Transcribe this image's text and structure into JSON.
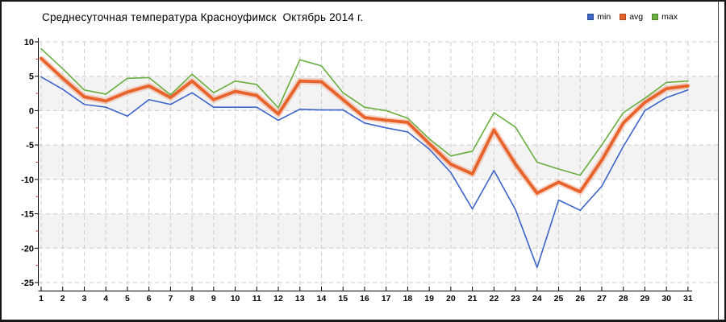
{
  "title": "Среднесуточная температура Красноуфимск  Октябрь 2014 г.",
  "legend": {
    "position": "top-right",
    "items": [
      {
        "name": "min",
        "label": "min",
        "color": "#3c64c9"
      },
      {
        "name": "avg",
        "label": "avg",
        "color": "#e8622c"
      },
      {
        "name": "max",
        "label": "max",
        "color": "#68ae3e"
      }
    ]
  },
  "chart_data": {
    "type": "line",
    "title": "Среднесуточная температура Красноуфимск  Октябрь 2014 г.",
    "xlabel": "",
    "ylabel": "",
    "x": [
      1,
      2,
      3,
      4,
      5,
      6,
      7,
      8,
      9,
      10,
      11,
      12,
      13,
      14,
      15,
      16,
      17,
      18,
      19,
      20,
      21,
      22,
      23,
      24,
      25,
      26,
      27,
      28,
      29,
      30,
      31
    ],
    "xtick_labels": [
      "1",
      "2",
      "3",
      "4",
      "5",
      "6",
      "7",
      "8",
      "9",
      "10",
      "11",
      "12",
      "13",
      "14",
      "15",
      "16",
      "17",
      "18",
      "19",
      "20",
      "21",
      "22",
      "23",
      "24",
      "25",
      "26",
      "27",
      "28",
      "29",
      "30",
      "31"
    ],
    "ylim": [
      -25,
      10
    ],
    "ytick_step": 5,
    "yminor_step": 2.5,
    "ytick_labels": [
      "10",
      "5",
      "0",
      "-5",
      "-10",
      "-15",
      "-20",
      "-25"
    ],
    "grid": "dashed",
    "grid_color": "#cccccc",
    "band_color": "#f3f3f3",
    "bands": [
      [
        5,
        0
      ],
      [
        -5,
        -10
      ],
      [
        -15,
        -20
      ]
    ],
    "axis_color": "#000000",
    "minor_tick_color": "#cf1f1f",
    "legend_position": "top-right",
    "series": [
      {
        "name": "min",
        "color": "#3c64c9",
        "width": 1.6,
        "halo": false,
        "values": [
          4.9,
          3.1,
          0.9,
          0.5,
          -0.8,
          1.6,
          0.9,
          2.6,
          0.5,
          0.5,
          0.5,
          -1.4,
          0.2,
          0.1,
          0.1,
          -1.8,
          -2.5,
          -3.1,
          -5.6,
          -9.0,
          -14.3,
          -8.7,
          -14.4,
          -22.8,
          -13.0,
          -14.5,
          -11.0,
          -5.2,
          0.0,
          1.9,
          3.0
        ]
      },
      {
        "name": "avg",
        "color": "#e8622c",
        "width": 3.8,
        "halo": true,
        "values": [
          7.6,
          4.7,
          2.0,
          1.4,
          2.7,
          3.6,
          1.9,
          4.3,
          1.6,
          2.8,
          2.2,
          -0.5,
          4.3,
          4.2,
          1.6,
          -1.0,
          -1.4,
          -1.7,
          -4.8,
          -7.8,
          -9.2,
          -2.8,
          -7.8,
          -12.0,
          -10.4,
          -11.8,
          -7.2,
          -1.8,
          1.2,
          3.2,
          3.6
        ]
      },
      {
        "name": "max",
        "color": "#68ae3e",
        "width": 1.6,
        "halo": false,
        "values": [
          9.0,
          6.1,
          3.0,
          2.4,
          4.7,
          4.8,
          2.3,
          5.3,
          2.6,
          4.3,
          3.8,
          0.4,
          7.4,
          6.5,
          2.6,
          0.5,
          0.0,
          -1.1,
          -4.1,
          -6.6,
          -5.9,
          -0.3,
          -2.4,
          -7.5,
          -8.5,
          -9.4,
          -5.0,
          -0.3,
          1.8,
          4.1,
          4.3
        ]
      }
    ]
  }
}
